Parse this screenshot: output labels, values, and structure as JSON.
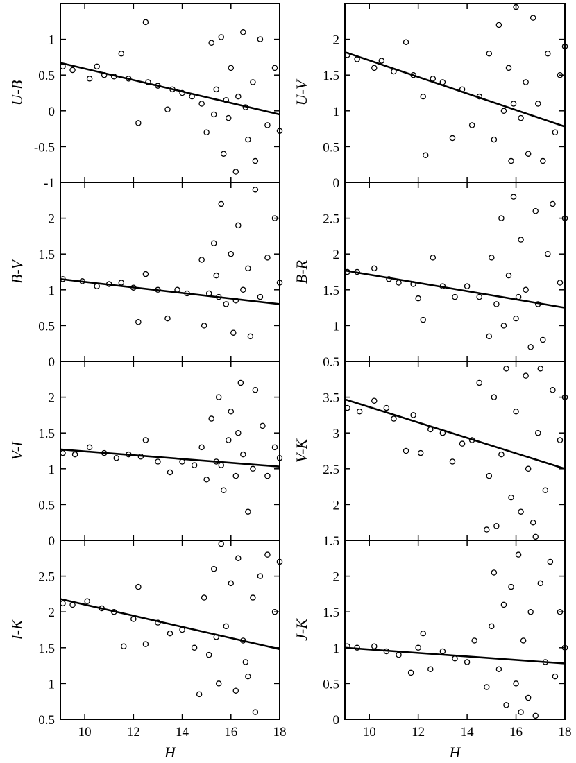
{
  "chart_data": [
    {
      "type": "scatter",
      "ylabel": "U-B",
      "color": "#000000",
      "xlim": [
        9,
        18
      ],
      "xticks": [
        10,
        12,
        14,
        16,
        18
      ],
      "ylim": [
        -1,
        1.5
      ],
      "yticks": [
        -1,
        -0.5,
        0,
        0.5,
        1
      ],
      "x": [
        9.1,
        9.5,
        10.2,
        10.5,
        10.8,
        11.2,
        11.5,
        11.8,
        12.2,
        12.5,
        12.6,
        13.0,
        13.4,
        13.6,
        14.0,
        14.4,
        14.8,
        15.0,
        15.2,
        15.4,
        15.6,
        15.7,
        15.9,
        16.0,
        16.2,
        16.3,
        16.5,
        16.7,
        16.9,
        17.0,
        17.2,
        17.5,
        17.8,
        18.0,
        15.3,
        16.6,
        15.8
      ],
      "y": [
        0.62,
        0.57,
        0.45,
        0.62,
        0.5,
        0.48,
        0.8,
        0.45,
        -0.17,
        1.24,
        0.4,
        0.35,
        0.02,
        0.3,
        0.25,
        0.2,
        0.1,
        -0.3,
        0.95,
        0.3,
        1.03,
        -0.6,
        -0.1,
        0.6,
        -0.85,
        0.2,
        1.1,
        -0.4,
        0.4,
        -0.7,
        1.0,
        -0.2,
        0.6,
        -0.28,
        -0.05,
        0.05,
        0.15
      ],
      "fit_x": [
        9,
        18
      ],
      "fit_y": [
        0.67,
        -0.05
      ]
    },
    {
      "type": "scatter",
      "ylabel": "B-V",
      "color": "#000000",
      "xlim": [
        9,
        18
      ],
      "xticks": [
        10,
        12,
        14,
        16,
        18
      ],
      "ylim": [
        0,
        2.5
      ],
      "yticks": [
        0,
        0.5,
        1,
        1.5,
        2
      ],
      "x": [
        9.1,
        9.9,
        10.5,
        11.0,
        11.5,
        12.0,
        12.2,
        12.5,
        13.0,
        13.4,
        13.8,
        14.2,
        14.8,
        14.9,
        15.1,
        15.3,
        15.5,
        15.6,
        15.8,
        16.0,
        16.1,
        16.3,
        16.5,
        16.7,
        16.8,
        17.0,
        17.2,
        17.5,
        17.8,
        18.0,
        16.2,
        15.4
      ],
      "y": [
        1.15,
        1.12,
        1.05,
        1.08,
        1.1,
        1.03,
        0.55,
        1.22,
        1.0,
        0.6,
        1.0,
        0.95,
        1.42,
        0.5,
        0.95,
        1.65,
        0.9,
        2.2,
        0.8,
        1.5,
        0.4,
        1.9,
        1.0,
        1.3,
        0.35,
        2.4,
        0.9,
        1.45,
        2.0,
        1.1,
        0.85,
        1.2
      ],
      "fit_x": [
        9,
        18
      ],
      "fit_y": [
        1.15,
        0.8
      ]
    },
    {
      "type": "scatter",
      "ylabel": "V-I",
      "color": "#000000",
      "xlim": [
        9,
        18
      ],
      "xticks": [
        10,
        12,
        14,
        16,
        18
      ],
      "ylim": [
        0,
        2.5
      ],
      "yticks": [
        0,
        0.5,
        1,
        1.5,
        2
      ],
      "x": [
        9.1,
        9.6,
        10.2,
        10.8,
        11.3,
        11.8,
        12.3,
        12.5,
        13.0,
        13.5,
        14.0,
        14.5,
        14.8,
        15.0,
        15.2,
        15.4,
        15.5,
        15.7,
        15.9,
        16.0,
        16.2,
        16.4,
        16.5,
        16.7,
        16.9,
        17.0,
        17.3,
        17.5,
        17.8,
        18.0,
        15.6,
        16.3
      ],
      "y": [
        1.22,
        1.2,
        1.3,
        1.22,
        1.15,
        1.2,
        1.17,
        1.4,
        1.1,
        0.95,
        1.1,
        1.05,
        1.3,
        0.85,
        1.7,
        1.1,
        2.0,
        0.7,
        1.4,
        1.8,
        0.9,
        2.2,
        1.2,
        0.4,
        1.0,
        2.1,
        1.6,
        0.9,
        1.3,
        1.15,
        1.05,
        1.5
      ],
      "fit_x": [
        9,
        18
      ],
      "fit_y": [
        1.27,
        1.03
      ]
    },
    {
      "type": "scatter",
      "ylabel": "I-K",
      "xlabel": "H",
      "color": "#000000",
      "xlim": [
        9,
        18
      ],
      "xticks": [
        10,
        12,
        14,
        16,
        18
      ],
      "ylim": [
        0.5,
        3
      ],
      "yticks": [
        0.5,
        1,
        1.5,
        2,
        2.5
      ],
      "x": [
        9.1,
        9.5,
        10.1,
        10.7,
        11.2,
        11.6,
        12.0,
        12.2,
        12.5,
        13.0,
        13.5,
        14.0,
        14.5,
        14.7,
        14.9,
        15.1,
        15.3,
        15.5,
        15.6,
        15.8,
        16.0,
        16.2,
        16.3,
        16.5,
        16.7,
        16.9,
        17.0,
        17.2,
        17.5,
        17.8,
        18.0,
        15.4,
        16.6
      ],
      "y": [
        2.12,
        2.1,
        2.15,
        2.05,
        2.0,
        1.52,
        1.9,
        2.35,
        1.55,
        1.85,
        1.7,
        1.75,
        1.5,
        0.85,
        2.2,
        1.4,
        2.6,
        1.0,
        2.95,
        1.8,
        2.4,
        0.9,
        2.75,
        1.6,
        1.1,
        2.2,
        0.6,
        2.5,
        2.8,
        2.0,
        2.7,
        1.65,
        1.3
      ],
      "fit_x": [
        9,
        18
      ],
      "fit_y": [
        2.18,
        1.48
      ]
    },
    {
      "type": "scatter",
      "ylabel": "U-V",
      "color": "#000000",
      "xlim": [
        9,
        18
      ],
      "xticks": [
        10,
        12,
        14,
        16,
        18
      ],
      "ylim": [
        0,
        2.5
      ],
      "yticks": [
        0,
        0.5,
        1,
        1.5,
        2
      ],
      "x": [
        9.1,
        9.5,
        10.2,
        10.5,
        11.0,
        11.5,
        11.8,
        12.2,
        12.3,
        12.6,
        13.0,
        13.4,
        13.8,
        14.2,
        14.5,
        14.9,
        15.1,
        15.3,
        15.5,
        15.7,
        15.8,
        16.0,
        16.2,
        16.4,
        16.5,
        16.7,
        16.9,
        17.1,
        17.3,
        17.6,
        17.8,
        18.0,
        15.9
      ],
      "y": [
        1.78,
        1.72,
        1.6,
        1.7,
        1.55,
        1.96,
        1.5,
        1.2,
        0.38,
        1.45,
        1.4,
        0.62,
        1.3,
        0.8,
        1.2,
        1.8,
        0.6,
        2.2,
        1.0,
        1.6,
        0.3,
        2.45,
        0.9,
        1.4,
        0.4,
        2.3,
        1.1,
        0.3,
        1.8,
        0.7,
        1.5,
        1.9,
        1.1
      ],
      "fit_x": [
        9,
        18
      ],
      "fit_y": [
        1.82,
        0.78
      ]
    },
    {
      "type": "scatter",
      "ylabel": "B-R",
      "color": "#000000",
      "xlim": [
        9,
        18
      ],
      "xticks": [
        10,
        12,
        14,
        16,
        18
      ],
      "ylim": [
        0.5,
        3
      ],
      "yticks": [
        0.5,
        1,
        1.5,
        2,
        2.5
      ],
      "x": [
        9.1,
        9.5,
        10.2,
        10.8,
        11.2,
        11.8,
        12.0,
        12.2,
        12.6,
        13.0,
        13.5,
        14.0,
        14.5,
        14.9,
        15.0,
        15.2,
        15.4,
        15.5,
        15.7,
        15.9,
        16.0,
        16.2,
        16.4,
        16.6,
        16.8,
        16.9,
        17.1,
        17.3,
        17.5,
        17.8,
        18.0,
        16.1
      ],
      "y": [
        1.75,
        1.75,
        1.8,
        1.65,
        1.6,
        1.58,
        1.38,
        1.08,
        1.95,
        1.55,
        1.4,
        1.55,
        1.4,
        0.85,
        1.95,
        1.3,
        2.5,
        1.0,
        1.7,
        2.8,
        1.1,
        2.2,
        1.5,
        0.7,
        2.6,
        1.3,
        0.8,
        2.0,
        2.7,
        1.6,
        2.5,
        1.4
      ],
      "fit_x": [
        9,
        18
      ],
      "fit_y": [
        1.77,
        1.25
      ]
    },
    {
      "type": "scatter",
      "ylabel": "V-K",
      "color": "#000000",
      "xlim": [
        9,
        18
      ],
      "xticks": [
        10,
        12,
        14,
        16,
        18
      ],
      "ylim": [
        1.5,
        4
      ],
      "yticks": [
        1.5,
        2,
        2.5,
        3,
        3.5
      ],
      "x": [
        9.1,
        9.6,
        10.2,
        10.7,
        11.0,
        11.5,
        11.8,
        12.1,
        12.5,
        13.0,
        13.4,
        13.8,
        14.2,
        14.5,
        14.8,
        14.9,
        15.1,
        15.2,
        15.4,
        15.6,
        15.8,
        16.0,
        16.2,
        16.4,
        16.5,
        16.7,
        16.9,
        17.0,
        17.2,
        17.5,
        17.8,
        18.0,
        16.8
      ],
      "y": [
        3.35,
        3.3,
        3.45,
        3.35,
        3.2,
        2.75,
        3.25,
        2.72,
        3.05,
        3.0,
        2.6,
        2.85,
        2.9,
        3.7,
        1.65,
        2.4,
        3.5,
        1.7,
        2.7,
        3.9,
        2.1,
        3.3,
        1.9,
        3.8,
        2.5,
        1.75,
        3.0,
        3.9,
        2.2,
        3.6,
        2.9,
        3.5,
        1.55
      ],
      "fit_x": [
        9,
        18
      ],
      "fit_y": [
        3.47,
        2.5
      ]
    },
    {
      "type": "scatter",
      "ylabel": "J-K",
      "xlabel": "H",
      "color": "#000000",
      "xlim": [
        9,
        18
      ],
      "xticks": [
        10,
        12,
        14,
        16,
        18
      ],
      "ylim": [
        0,
        2.5
      ],
      "yticks": [
        0,
        0.5,
        1,
        1.5,
        2
      ],
      "x": [
        9.1,
        9.5,
        10.2,
        10.7,
        11.2,
        11.7,
        12.0,
        12.2,
        12.5,
        13.0,
        13.5,
        14.0,
        14.3,
        14.8,
        15.0,
        15.1,
        15.3,
        15.5,
        15.6,
        15.8,
        16.0,
        16.1,
        16.3,
        16.5,
        16.6,
        16.8,
        17.0,
        17.2,
        17.4,
        17.6,
        17.8,
        18.0,
        16.2
      ],
      "y": [
        1.02,
        1.0,
        1.02,
        0.95,
        0.9,
        0.65,
        1.0,
        1.2,
        0.7,
        0.95,
        0.85,
        0.8,
        1.1,
        0.45,
        1.3,
        2.05,
        0.7,
        1.6,
        0.2,
        1.85,
        0.5,
        2.3,
        1.1,
        0.3,
        1.5,
        0.05,
        1.9,
        0.8,
        2.2,
        0.6,
        1.5,
        1.0,
        0.1
      ],
      "fit_x": [
        9,
        18
      ],
      "fit_y": [
        1.0,
        0.78
      ]
    }
  ]
}
